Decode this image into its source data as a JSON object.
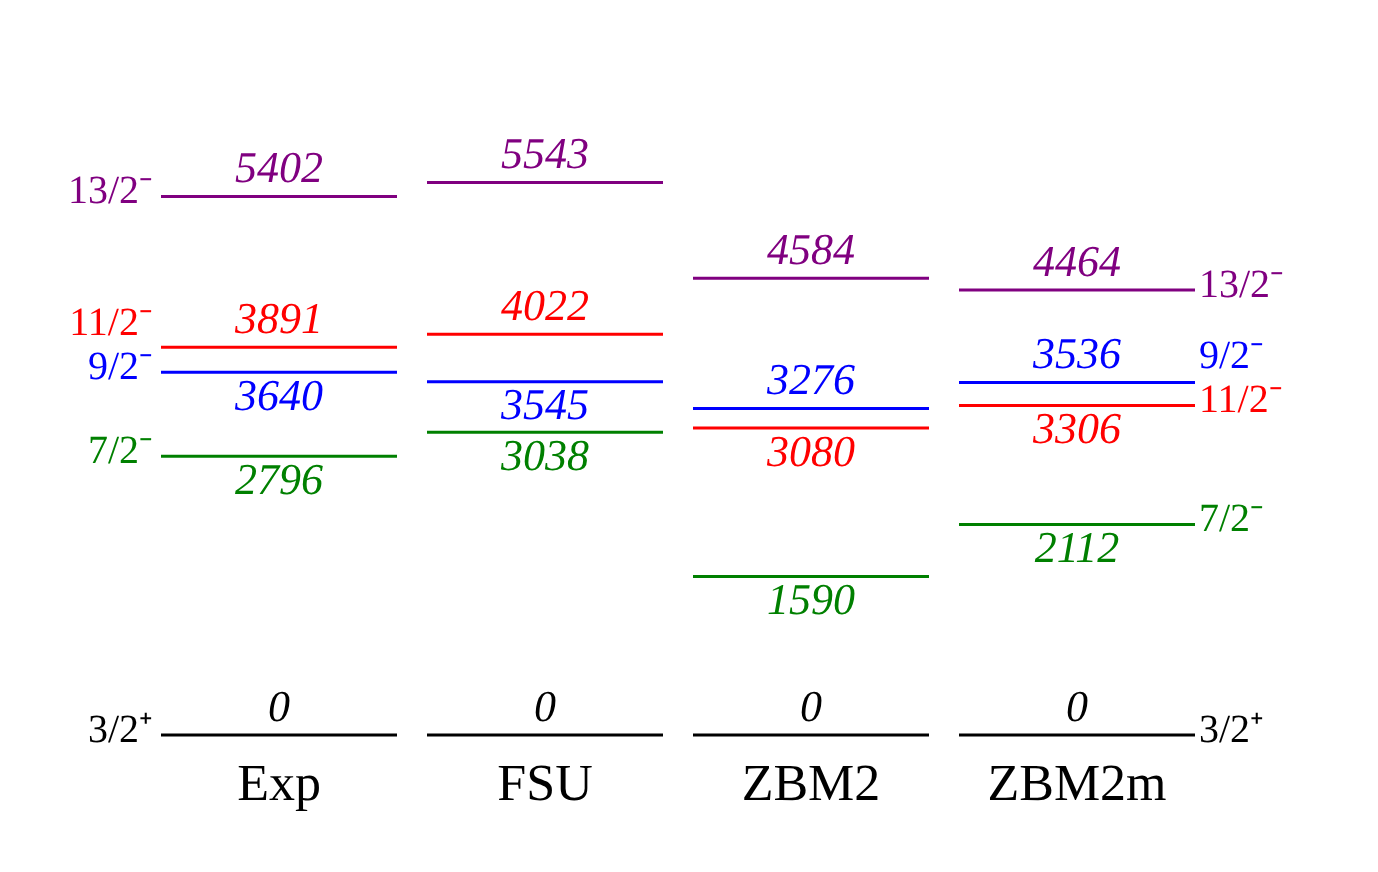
{
  "chart_data": {
    "type": "other",
    "categories": [
      "Exp",
      "FSU",
      "ZBM2",
      "ZBM2m"
    ],
    "data_labels": true,
    "series": [
      {
        "name": "13/2⁻",
        "color": "#800080",
        "values": [
          5402,
          5543,
          4584,
          4464
        ]
      },
      {
        "name": "11/2⁻",
        "color": "#ff0000",
        "values": [
          3891,
          4022,
          3080,
          3306
        ]
      },
      {
        "name": "9/2⁻",
        "color": "#0000ff",
        "values": [
          3640,
          3545,
          3276,
          3536
        ]
      },
      {
        "name": "7/2⁻",
        "color": "#008000",
        "values": [
          2796,
          3038,
          1590,
          2112
        ]
      },
      {
        "name": "3/2⁺",
        "color": "#000000",
        "values": [
          0,
          0,
          0,
          0
        ]
      }
    ]
  }
}
